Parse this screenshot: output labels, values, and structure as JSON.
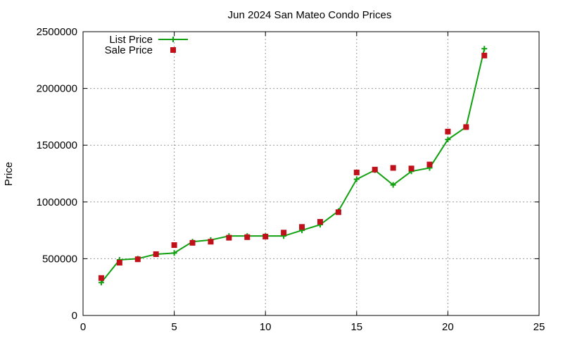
{
  "chart_data": {
    "type": "line",
    "title": "Jun 2024 San Mateo Condo Prices",
    "xlabel": "",
    "ylabel": "Price",
    "xlim": [
      0,
      25
    ],
    "ylim": [
      0,
      2500000
    ],
    "xticks": [
      "0",
      "5",
      "10",
      "15",
      "20",
      "25"
    ],
    "yticks": [
      "0",
      "500000",
      "1000000",
      "1500000",
      "2000000",
      "2500000"
    ],
    "grid": true,
    "legend_position": "top-left",
    "series": [
      {
        "name": "List Price",
        "style": "line+cross",
        "color": "#10a010",
        "x": [
          1,
          2,
          3,
          4,
          5,
          6,
          7,
          8,
          9,
          10,
          11,
          12,
          13,
          14,
          15,
          16,
          17,
          18,
          19,
          20,
          21,
          22
        ],
        "y": [
          290000,
          490000,
          500000,
          540000,
          550000,
          650000,
          665000,
          700000,
          700000,
          700000,
          700000,
          750000,
          800000,
          920000,
          1200000,
          1280000,
          1150000,
          1270000,
          1300000,
          1550000,
          1660000,
          2350000
        ]
      },
      {
        "name": "Sale Price",
        "style": "square",
        "color": "#c0101a",
        "x": [
          1,
          2,
          3,
          4,
          5,
          6,
          7,
          8,
          9,
          10,
          11,
          12,
          13,
          14,
          15,
          16,
          17,
          18,
          19,
          20,
          21,
          22
        ],
        "y": [
          330000,
          465000,
          495000,
          540000,
          620000,
          640000,
          650000,
          685000,
          690000,
          695000,
          730000,
          780000,
          825000,
          910000,
          1260000,
          1285000,
          1300000,
          1295000,
          1330000,
          1620000,
          1660000,
          2290000
        ]
      }
    ]
  }
}
